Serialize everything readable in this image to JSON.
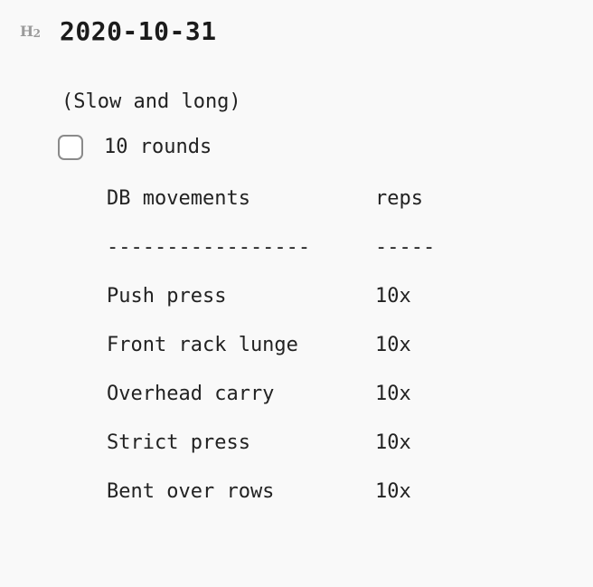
{
  "heading": {
    "marker": "H",
    "marker_sub": "2",
    "title": "2020-10-31"
  },
  "note": "(Slow and long)",
  "task": {
    "checked": false,
    "label": "10 rounds"
  },
  "table": {
    "headers": [
      "DB movements",
      "reps"
    ],
    "separator": [
      "-----------------",
      "-----"
    ],
    "rows": [
      [
        "Push press",
        "10x"
      ],
      [
        "Front rack lunge",
        "10x"
      ],
      [
        "Overhead carry",
        "10x"
      ],
      [
        "Strict press",
        "10x"
      ],
      [
        "Bent over rows",
        "10x"
      ]
    ]
  }
}
